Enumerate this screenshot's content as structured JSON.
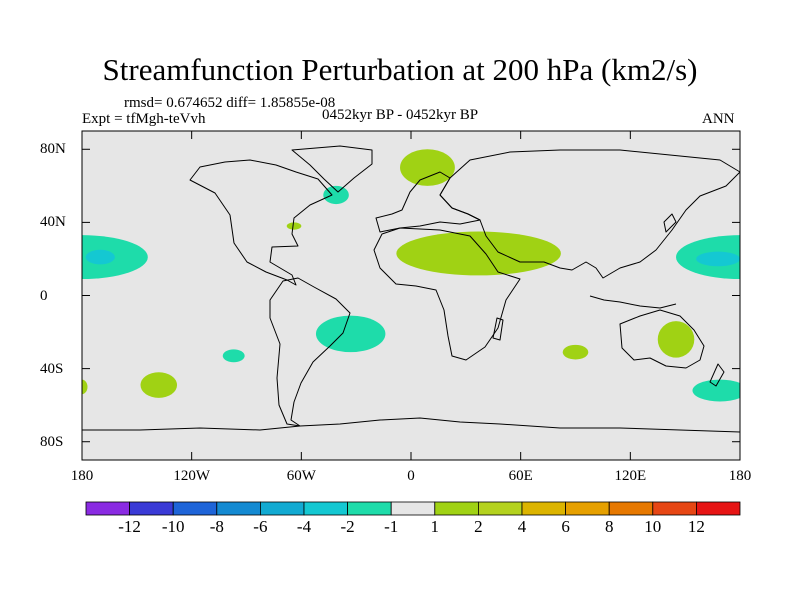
{
  "title": "Streamfunction Perturbation at 200 hPa (km2/s)",
  "stats": "rmsd= 0.674652 diff= 1.85855e-08",
  "experiment": "Expt = tfMgh-teVvh",
  "period": "0452kyr BP - 0452kyr BP",
  "season": "ANN",
  "lat_ticks": [
    {
      "label": "80N",
      "lat": 80
    },
    {
      "label": "40N",
      "lat": 40
    },
    {
      "label": "0",
      "lat": 0
    },
    {
      "label": "40S",
      "lat": -40
    },
    {
      "label": "80S",
      "lat": -80
    }
  ],
  "lon_ticks": [
    {
      "label": "180",
      "lon": -180
    },
    {
      "label": "120W",
      "lon": -120
    },
    {
      "label": "60W",
      "lon": -60
    },
    {
      "label": "0",
      "lon": 0
    },
    {
      "label": "60E",
      "lon": 60
    },
    {
      "label": "120E",
      "lon": 120
    },
    {
      "label": "180",
      "lon": 180
    }
  ],
  "colorbar": {
    "colors": [
      "#8a2be2",
      "#3a3ad6",
      "#1e64d8",
      "#148ad2",
      "#12aad2",
      "#14c8d2",
      "#1edcaa",
      "#e6e6e6",
      "#a0d214",
      "#b4d21e",
      "#dcb400",
      "#e6a000",
      "#e67800",
      "#e64614",
      "#e61414"
    ],
    "labels": [
      "-12",
      "-10",
      "-8",
      "-6",
      "-4",
      "-2",
      "-1",
      "1",
      "2",
      "4",
      "6",
      "8",
      "10",
      "12"
    ]
  },
  "colors": {
    "background": "#e6e6e6",
    "green": "#a0d214",
    "teal": "#1edcaa",
    "cyan": "#14c8d2",
    "coast": "#000000"
  },
  "anomalies": [
    {
      "level": "2",
      "color_key": "green",
      "label": "North Atlantic / Scandinavia",
      "lon": 9,
      "lat": 70,
      "rlon": 15,
      "rlat": 10
    },
    {
      "level": "2",
      "color_key": "green",
      "label": "North Africa / Arabia",
      "lon": 37,
      "lat": 23,
      "rlon": 45,
      "rlat": 12
    },
    {
      "level": "2",
      "color_key": "green",
      "label": "Subtropical North Atlantic",
      "lon": -64,
      "lat": 38,
      "rlon": 4,
      "rlat": 2
    },
    {
      "level": "2",
      "color_key": "green",
      "label": "Australia",
      "lon": 145,
      "lat": -24,
      "rlon": 10,
      "rlat": 10
    },
    {
      "level": "2",
      "color_key": "green",
      "label": "South Indian Ocean",
      "lon": 90,
      "lat": -31,
      "rlon": 7,
      "rlat": 4
    },
    {
      "level": "2",
      "color_key": "green",
      "label": "South Pacific",
      "lon": -138,
      "lat": -49,
      "rlon": 10,
      "rlat": 7
    },
    {
      "level": "2",
      "color_key": "green",
      "label": "Far South Pacific edge",
      "lon": -180,
      "lat": -50,
      "rlon": 3,
      "rlat": 4
    },
    {
      "level": "-1",
      "color_key": "teal",
      "label": "South Atlantic",
      "lon": -33,
      "lat": -21,
      "rlon": 19,
      "rlat": 10
    },
    {
      "level": "-1",
      "color_key": "teal",
      "label": "East Pacific",
      "lon": -180,
      "lat": 21,
      "rlon": 36,
      "rlat": 12
    },
    {
      "level": "-1",
      "color_key": "teal",
      "label": "West Pacific",
      "lon": 180,
      "lat": 21,
      "rlon": 35,
      "rlat": 12
    },
    {
      "level": "-1",
      "color_key": "teal",
      "label": "Southwest Pacific",
      "lon": 169,
      "lat": -52,
      "rlon": 15,
      "rlat": 6
    },
    {
      "level": "-1",
      "color_key": "teal",
      "label": "Labrador Sea",
      "lon": -41,
      "lat": 55,
      "rlon": 7,
      "rlat": 5
    },
    {
      "level": "-1",
      "color_key": "teal",
      "label": "Southeast Pacific",
      "lon": -97,
      "lat": -33,
      "rlon": 6,
      "rlat": 3.5
    },
    {
      "level": "-2",
      "color_key": "cyan",
      "label": "East Pacific core",
      "lon": -170,
      "lat": 21,
      "rlon": 8,
      "rlat": 4
    },
    {
      "level": "-2",
      "color_key": "cyan",
      "label": "West Pacific core",
      "lon": 168,
      "lat": 20,
      "rlon": 12,
      "rlat": 4
    }
  ]
}
